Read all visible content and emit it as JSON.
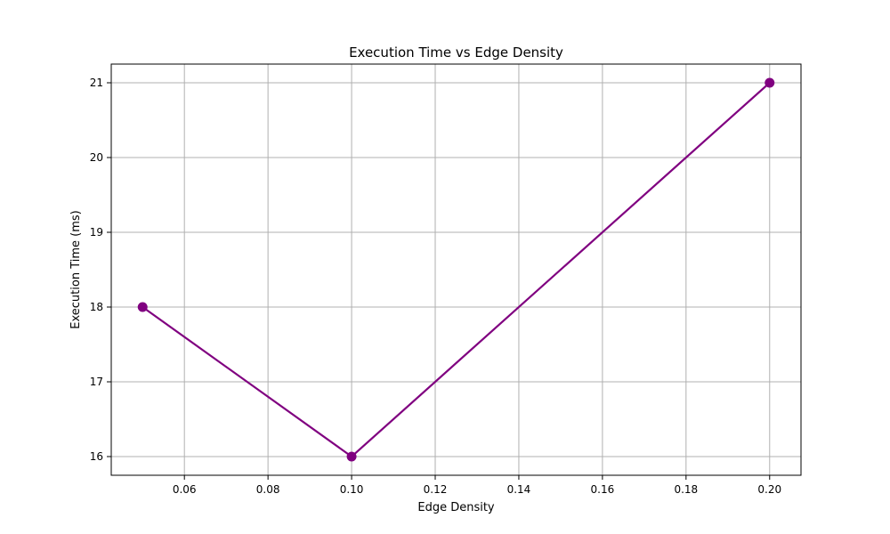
{
  "chart_data": {
    "type": "line",
    "title": "Execution Time vs Edge Density",
    "xlabel": "Edge Density",
    "ylabel": "Execution Time (ms)",
    "xlim": [
      0.0425,
      0.2075
    ],
    "ylim": [
      15.75,
      21.25
    ],
    "x_ticks": [
      0.06,
      0.08,
      0.1,
      0.12,
      0.14,
      0.16,
      0.18,
      0.2
    ],
    "x_tick_labels": [
      "0.06",
      "0.08",
      "0.10",
      "0.12",
      "0.14",
      "0.16",
      "0.18",
      "0.20"
    ],
    "y_ticks": [
      16,
      17,
      18,
      19,
      20,
      21
    ],
    "y_tick_labels": [
      "16",
      "17",
      "18",
      "19",
      "20",
      "21"
    ],
    "grid": true,
    "series": [
      {
        "x": [
          0.05,
          0.1,
          0.2
        ],
        "y": [
          18,
          16,
          21
        ],
        "color": "#800080",
        "marker": "circle"
      }
    ]
  }
}
